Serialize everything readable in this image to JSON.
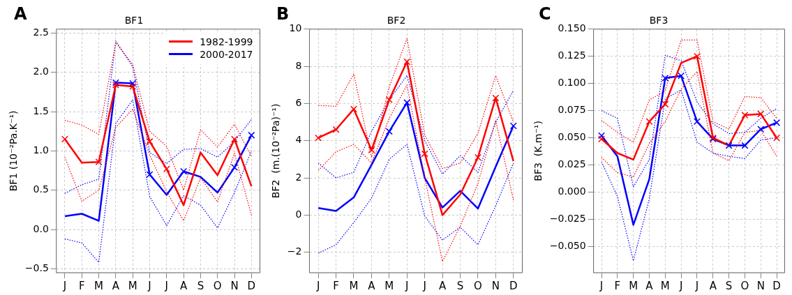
{
  "chart_data": [
    {
      "type": "line",
      "title": "BF1",
      "ylabel": "BF1 (10⁻²Pa.K⁻¹)",
      "annotations": [
        "A"
      ],
      "categories": [
        "J",
        "F",
        "M",
        "A",
        "M",
        "J",
        "J",
        "A",
        "S",
        "O",
        "N",
        "D"
      ],
      "ylim": [
        -0.55,
        2.55
      ],
      "yticks": [
        {
          "value": -0.5,
          "label": "−0.5"
        },
        {
          "value": 0,
          "label": "0.0"
        },
        0.5,
        {
          "value": 1,
          "label": "1.0"
        },
        1.5,
        {
          "value": 2,
          "label": "2.0"
        },
        2.5
      ],
      "grid": true,
      "legend": "top right",
      "series": [
        {
          "name": "1982-1999",
          "color": "#ff0000",
          "values": [
            1.15,
            0.85,
            0.86,
            1.84,
            1.82,
            1.12,
            0.77,
            0.31,
            0.98,
            0.69,
            1.15,
            0.55
          ]
        },
        {
          "color": "#ff0000",
          "line_style": "dotted",
          "values": [
            1.39,
            1.33,
            1.21,
            2.38,
            2.1,
            1.25,
            1.06,
            0.5,
            1.27,
            1.05,
            1.34,
            0.93
          ]
        },
        {
          "color": "#ff0000",
          "line_style": "dotted",
          "values": [
            0.92,
            0.36,
            0.5,
            1.3,
            1.53,
            0.95,
            0.48,
            0.11,
            0.66,
            0.35,
            0.97,
            0.18
          ]
        },
        {
          "type": "scatter",
          "marker": "cross",
          "color": "#ff0000",
          "values": [
            1.15,
            null,
            0.86,
            1.84,
            1.82,
            1.12,
            0.77,
            null,
            null,
            null,
            1.15,
            null
          ]
        },
        {
          "name": "2000-2017",
          "color": "#0000ff",
          "values": [
            0.17,
            0.2,
            0.11,
            1.87,
            1.86,
            0.7,
            0.44,
            0.74,
            0.67,
            0.47,
            0.79,
            1.2
          ]
        },
        {
          "color": "#0000ff",
          "line_style": "dotted",
          "values": [
            0.46,
            0.57,
            0.64,
            2.4,
            2.07,
            0.98,
            0.84,
            1.02,
            1.03,
            0.92,
            1.12,
            1.4
          ]
        },
        {
          "color": "#0000ff",
          "line_style": "dotted",
          "values": [
            -0.12,
            -0.17,
            -0.42,
            1.35,
            1.65,
            0.42,
            0.05,
            0.43,
            0.31,
            0.02,
            0.47,
            1.0
          ]
        },
        {
          "type": "scatter",
          "marker": "cross",
          "color": "#0000ff",
          "values": [
            null,
            null,
            null,
            1.87,
            1.86,
            0.7,
            null,
            0.74,
            null,
            null,
            0.79,
            1.2
          ]
        }
      ]
    },
    {
      "type": "line",
      "title": "BF2",
      "ylabel": "BF2  (m.(10⁻²Pa)⁻¹)",
      "annotations": [
        "B"
      ],
      "categories": [
        "J",
        "F",
        "M",
        "A",
        "M",
        "J",
        "J",
        "A",
        "S",
        "O",
        "N",
        "D"
      ],
      "ylim": [
        -3.1,
        10
      ],
      "yticks": [
        {
          "value": -2,
          "label": "−2"
        },
        0,
        2,
        4,
        6,
        8,
        10
      ],
      "grid": true,
      "series": [
        {
          "color": "#ff0000",
          "values": [
            4.15,
            4.6,
            5.7,
            3.5,
            6.2,
            8.25,
            3.3,
            0.0,
            1.1,
            3.1,
            6.3,
            2.9
          ]
        },
        {
          "color": "#ff0000",
          "line_style": "dotted",
          "values": [
            5.9,
            5.85,
            7.6,
            3.1,
            6.9,
            9.5,
            4.3,
            2.5,
            2.8,
            4.4,
            7.5,
            5.0
          ]
        },
        {
          "color": "#ff0000",
          "line_style": "dotted",
          "values": [
            2.4,
            3.4,
            3.8,
            2.8,
            5.2,
            7.0,
            2.0,
            -2.5,
            -0.6,
            1.7,
            5.1,
            0.8
          ]
        },
        {
          "type": "scatter",
          "marker": "cross",
          "color": "#ff0000",
          "values": [
            4.15,
            4.6,
            5.7,
            3.5,
            6.2,
            8.25,
            3.3,
            null,
            null,
            3.1,
            6.3,
            null
          ]
        },
        {
          "color": "#0000ff",
          "values": [
            0.38,
            0.22,
            0.95,
            2.7,
            4.5,
            6.05,
            2.0,
            0.4,
            1.3,
            0.35,
            2.6,
            4.8
          ]
        },
        {
          "color": "#0000ff",
          "line_style": "dotted",
          "values": [
            2.8,
            2.0,
            2.3,
            4.5,
            6.2,
            7.5,
            4.0,
            2.2,
            3.2,
            2.3,
            5.0,
            6.7
          ]
        },
        {
          "color": "#0000ff",
          "line_style": "dotted",
          "values": [
            -2.05,
            -1.6,
            -0.4,
            0.9,
            3.0,
            3.8,
            -0.05,
            -1.35,
            -0.65,
            -1.6,
            0.5,
            2.8
          ]
        },
        {
          "type": "scatter",
          "marker": "cross",
          "color": "#0000ff",
          "values": [
            null,
            null,
            null,
            null,
            4.5,
            6.05,
            null,
            null,
            null,
            null,
            null,
            4.8
          ]
        }
      ]
    },
    {
      "type": "line",
      "title": "BF3",
      "ylabel": "BF3  (K.m⁻¹)",
      "annotations": [
        "C"
      ],
      "categories": [
        "J",
        "F",
        "M",
        "A",
        "M",
        "J",
        "J",
        "A",
        "S",
        "O",
        "N",
        "D"
      ],
      "ylim": [
        -0.074,
        0.15
      ],
      "yticks": [
        {
          "value": -0.05,
          "label": "−0.050"
        },
        {
          "value": -0.025,
          "label": "−0.025"
        },
        {
          "value": 0,
          "label": "0.000"
        },
        {
          "value": 0.025,
          "label": "0.025"
        },
        {
          "value": 0.05,
          "label": "0.050"
        },
        {
          "value": 0.075,
          "label": "0.075"
        },
        {
          "value": 0.1,
          "label": "0.100"
        },
        {
          "value": 0.125,
          "label": "0.125"
        },
        {
          "value": 0.15,
          "label": "0.150"
        }
      ],
      "grid": true,
      "series": [
        {
          "color": "#ff0000",
          "values": [
            0.049,
            0.036,
            0.03,
            0.065,
            0.081,
            0.119,
            0.125,
            0.05,
            0.043,
            0.071,
            0.072,
            0.05
          ]
        },
        {
          "color": "#ff0000",
          "line_style": "dotted",
          "values": [
            0.066,
            0.055,
            0.046,
            0.085,
            0.093,
            0.14,
            0.14,
            0.065,
            0.058,
            0.088,
            0.087,
            0.068
          ]
        },
        {
          "color": "#ff0000",
          "line_style": "dotted",
          "values": [
            0.032,
            0.018,
            0.014,
            0.045,
            0.065,
            0.095,
            0.111,
            0.036,
            0.029,
            0.055,
            0.057,
            0.033
          ]
        },
        {
          "type": "scatter",
          "marker": "cross",
          "color": "#ff0000",
          "values": [
            0.049,
            null,
            null,
            0.065,
            0.081,
            null,
            0.125,
            0.05,
            null,
            0.071,
            0.072,
            0.05
          ]
        },
        {
          "color": "#0000ff",
          "values": [
            0.052,
            0.033,
            -0.03,
            0.012,
            0.105,
            0.107,
            0.065,
            0.049,
            0.043,
            0.043,
            0.058,
            0.064
          ]
        },
        {
          "color": "#0000ff",
          "line_style": "dotted",
          "values": [
            0.075,
            0.068,
            0.005,
            0.03,
            0.126,
            0.121,
            0.083,
            0.063,
            0.054,
            0.055,
            0.068,
            0.077
          ]
        },
        {
          "color": "#0000ff",
          "line_style": "dotted",
          "values": [
            0.028,
            -0.004,
            -0.063,
            -0.006,
            0.086,
            0.094,
            0.046,
            0.036,
            0.033,
            0.031,
            0.048,
            0.05
          ]
        },
        {
          "type": "scatter",
          "marker": "cross",
          "color": "#0000ff",
          "values": [
            0.052,
            null,
            null,
            null,
            0.105,
            0.107,
            0.065,
            0.049,
            0.043,
            0.043,
            0.058,
            0.064
          ]
        }
      ]
    }
  ]
}
